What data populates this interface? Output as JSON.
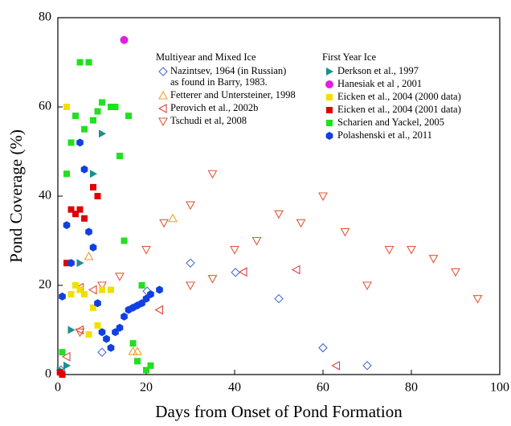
{
  "chart_data": {
    "type": "scatter",
    "x_label": "Days from Onset of Pond Formation",
    "y_label": "Pond Coverage (%)",
    "xlim": [
      0,
      100
    ],
    "xticks": [
      0,
      20,
      40,
      60,
      80,
      100
    ],
    "ylim": [
      0,
      80
    ],
    "yticks": [
      0,
      20,
      40,
      60,
      80
    ],
    "legend_groups": [
      "Multiyear and Mixed Ice",
      "First Year Ice"
    ],
    "series": [
      {
        "name": [
          "Nazintsev, 1964 (in Russian)",
          "as found in Barry, 1983."
        ],
        "group": 0,
        "marker": "diamond-open",
        "color": "#4a6fd0",
        "x": [
          0.7,
          10,
          20.2,
          30,
          40.2,
          50,
          60,
          70
        ],
        "values": [
          1,
          5,
          18.7,
          25,
          22.9,
          17,
          6,
          2
        ]
      },
      {
        "name": [
          "Fetterer and Untersteiner, 1998"
        ],
        "group": 0,
        "marker": "triangle-up-open",
        "color": "#f0a030",
        "x": [
          26,
          7,
          17,
          18
        ],
        "values": [
          35,
          26.5,
          5.2,
          5.2
        ]
      },
      {
        "name": [
          "Perovich et al., 2002b"
        ],
        "group": 0,
        "marker": "triangle-left-open",
        "color": "#e04040",
        "x": [
          2,
          5,
          8,
          23,
          42,
          54,
          63,
          5
        ],
        "values": [
          4,
          19.5,
          19,
          14.5,
          23,
          23.5,
          2,
          10
        ]
      },
      {
        "name": [
          "Tschudi et al, 2008"
        ],
        "group": 0,
        "marker": "triangle-down-open",
        "color": "#e05a3a",
        "x": [
          10,
          14,
          20,
          24,
          30,
          35,
          40,
          45,
          50,
          55,
          60,
          65,
          70,
          75,
          80,
          85,
          90,
          95,
          30,
          35,
          5
        ],
        "values": [
          20,
          22,
          28,
          34,
          38,
          45,
          28,
          30,
          36,
          34,
          40,
          32,
          20,
          28,
          28,
          26,
          23,
          17,
          20,
          21.5,
          9.5
        ]
      },
      {
        "name": [
          "Derkson et al., 1997"
        ],
        "group": 1,
        "marker": "triangle-right",
        "color": "#1a9090",
        "x": [
          10,
          8,
          5,
          3,
          2,
          0.5
        ],
        "values": [
          54,
          45,
          25,
          10,
          2,
          1
        ]
      },
      {
        "name": [
          "Hanesiak et al , 2001"
        ],
        "group": 1,
        "marker": "circle",
        "color": "#e020e0",
        "x": [
          15
        ],
        "values": [
          75
        ]
      },
      {
        "name": [
          "Eicken et al., 2004 (2000 data)"
        ],
        "group": 1,
        "marker": "square",
        "color": "#f0e000",
        "x": [
          2,
          4,
          3,
          6,
          8,
          9,
          10,
          12,
          7,
          5
        ],
        "values": [
          60,
          20,
          18,
          18,
          15,
          11,
          19,
          19,
          9,
          19
        ]
      },
      {
        "name": [
          "Eicken et al., 2004 (2001 data)"
        ],
        "group": 1,
        "marker": "square",
        "color": "#e00000",
        "x": [
          3,
          4,
          5,
          6,
          8,
          9,
          2,
          0.5,
          1
        ],
        "values": [
          37,
          36,
          37,
          35,
          42,
          40,
          25,
          0.5,
          0
        ]
      },
      {
        "name": [
          "Scharien and Yackel, 2005"
        ],
        "group": 1,
        "marker": "square",
        "color": "#20e020",
        "x": [
          5,
          7,
          10,
          12,
          13,
          3,
          4,
          6,
          8,
          9,
          2,
          16,
          14,
          15,
          19,
          17,
          18,
          20,
          21,
          1
        ],
        "values": [
          70,
          70,
          61,
          60,
          60,
          52,
          58,
          55,
          57,
          59,
          45,
          58,
          49,
          30,
          20,
          7,
          3,
          1,
          2,
          5
        ]
      },
      {
        "name": [
          "Polashenski et al., 2011"
        ],
        "group": 1,
        "marker": "hexagon",
        "color": "#1040e0",
        "x": [
          1,
          3,
          5,
          6,
          2,
          7,
          8,
          9,
          10,
          11,
          12,
          13,
          14,
          15,
          16,
          17,
          18,
          19,
          20,
          21,
          23
        ],
        "values": [
          17.5,
          25,
          52,
          46,
          33.5,
          32,
          28.5,
          16,
          9.5,
          8,
          6,
          9.5,
          10.5,
          13,
          14.5,
          15,
          15.5,
          16,
          17,
          18,
          19
        ]
      }
    ]
  }
}
